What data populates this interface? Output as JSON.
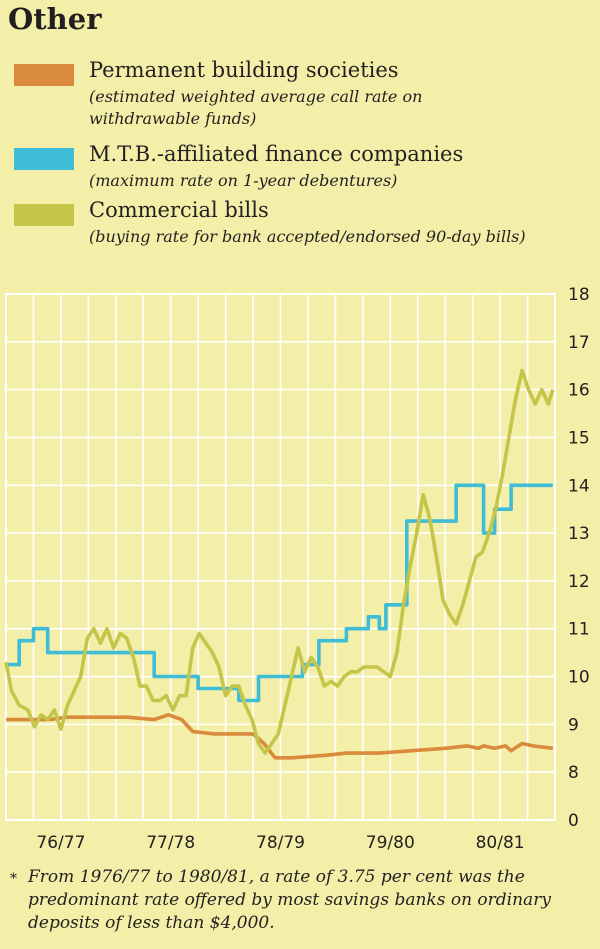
{
  "title": "Other",
  "legend": [
    {
      "name": "Permanent building societies",
      "note": "(estimated weighted average call rate on withdrawable funds)",
      "color": "#d98a3c"
    },
    {
      "name": "M.T.B.-affiliated finance companies",
      "note": "(maximum rate on 1-year debentures)",
      "color": "#3fbcd6"
    },
    {
      "name": "Commercial bills",
      "note": "(buying rate for bank accepted/endorsed 90-day bills)",
      "color": "#c5c54a"
    }
  ],
  "footnote": {
    "marker": "*",
    "text": "From 1976/77 to 1980/81, a rate of 3.75 per cent was the predominant rate offered by most savings banks on ordinary deposits of less than $4,000."
  },
  "chart_data": {
    "type": "line",
    "title": "Other",
    "xlabel": "",
    "ylabel": "",
    "x_range": [
      1976.5,
      1981.5
    ],
    "ylim": [
      0,
      18
    ],
    "y_axis_break": [
      0,
      8
    ],
    "y_ticks": [
      0,
      8,
      9,
      10,
      11,
      12,
      13,
      14,
      15,
      16,
      17,
      18
    ],
    "x_tick_labels": [
      {
        "label": "76/77",
        "x": 1977.0
      },
      {
        "label": "77/78",
        "x": 1978.0
      },
      {
        "label": "78/79",
        "x": 1979.0
      },
      {
        "label": "79/80",
        "x": 1980.0
      },
      {
        "label": "80/81",
        "x": 1981.0
      }
    ],
    "grid": true,
    "series": [
      {
        "name": "Permanent building societies",
        "color": "#d98a3c",
        "points": [
          [
            1976.5,
            9.1
          ],
          [
            1976.9,
            9.1
          ],
          [
            1977.05,
            9.15
          ],
          [
            1977.3,
            9.15
          ],
          [
            1977.6,
            9.15
          ],
          [
            1977.85,
            9.1
          ],
          [
            1977.98,
            9.2
          ],
          [
            1978.1,
            9.1
          ],
          [
            1978.2,
            8.85
          ],
          [
            1978.4,
            8.8
          ],
          [
            1978.6,
            8.8
          ],
          [
            1978.75,
            8.8
          ],
          [
            1978.85,
            8.6
          ],
          [
            1978.95,
            8.3
          ],
          [
            1979.1,
            8.3
          ],
          [
            1979.4,
            8.35
          ],
          [
            1979.6,
            8.4
          ],
          [
            1979.9,
            8.4
          ],
          [
            1980.2,
            8.45
          ],
          [
            1980.5,
            8.5
          ],
          [
            1980.7,
            8.55
          ],
          [
            1980.8,
            8.5
          ],
          [
            1980.85,
            8.55
          ],
          [
            1980.95,
            8.5
          ],
          [
            1981.05,
            8.55
          ],
          [
            1981.1,
            8.45
          ],
          [
            1981.2,
            8.6
          ],
          [
            1981.3,
            8.55
          ],
          [
            1981.48,
            8.5
          ]
        ]
      },
      {
        "name": "M.T.B.-affiliated finance companies",
        "color": "#3fbcd6",
        "step": true,
        "points": [
          [
            1976.5,
            10.25
          ],
          [
            1976.62,
            10.25
          ],
          [
            1976.62,
            10.75
          ],
          [
            1976.75,
            10.75
          ],
          [
            1976.75,
            11.0
          ],
          [
            1976.88,
            11.0
          ],
          [
            1976.88,
            10.5
          ],
          [
            1977.85,
            10.5
          ],
          [
            1977.85,
            10.0
          ],
          [
            1978.25,
            10.0
          ],
          [
            1978.25,
            9.75
          ],
          [
            1978.62,
            9.75
          ],
          [
            1978.62,
            9.5
          ],
          [
            1978.8,
            9.5
          ],
          [
            1978.8,
            10.0
          ],
          [
            1979.2,
            10.0
          ],
          [
            1979.2,
            10.25
          ],
          [
            1979.35,
            10.25
          ],
          [
            1979.35,
            10.75
          ],
          [
            1979.6,
            10.75
          ],
          [
            1979.6,
            11.0
          ],
          [
            1979.8,
            11.0
          ],
          [
            1979.8,
            11.25
          ],
          [
            1979.9,
            11.25
          ],
          [
            1979.9,
            11.0
          ],
          [
            1979.96,
            11.0
          ],
          [
            1979.96,
            11.5
          ],
          [
            1980.15,
            11.5
          ],
          [
            1980.15,
            13.25
          ],
          [
            1980.6,
            13.25
          ],
          [
            1980.6,
            14.0
          ],
          [
            1980.85,
            14.0
          ],
          [
            1980.85,
            13.0
          ],
          [
            1980.95,
            13.0
          ],
          [
            1980.95,
            13.5
          ],
          [
            1981.1,
            13.5
          ],
          [
            1981.1,
            14.0
          ],
          [
            1981.48,
            14.0
          ]
        ]
      },
      {
        "name": "Commercial bills",
        "color": "#c5c54a",
        "points": [
          [
            1976.5,
            10.3
          ],
          [
            1976.55,
            9.7
          ],
          [
            1976.62,
            9.4
          ],
          [
            1976.7,
            9.3
          ],
          [
            1976.76,
            8.95
          ],
          [
            1976.82,
            9.2
          ],
          [
            1976.88,
            9.1
          ],
          [
            1976.94,
            9.3
          ],
          [
            1977.0,
            8.9
          ],
          [
            1977.06,
            9.4
          ],
          [
            1977.12,
            9.7
          ],
          [
            1977.18,
            10.0
          ],
          [
            1977.24,
            10.8
          ],
          [
            1977.3,
            11.0
          ],
          [
            1977.36,
            10.7
          ],
          [
            1977.42,
            11.0
          ],
          [
            1977.48,
            10.6
          ],
          [
            1977.54,
            10.9
          ],
          [
            1977.6,
            10.8
          ],
          [
            1977.66,
            10.4
          ],
          [
            1977.72,
            9.8
          ],
          [
            1977.78,
            9.8
          ],
          [
            1977.84,
            9.5
          ],
          [
            1977.9,
            9.5
          ],
          [
            1977.96,
            9.6
          ],
          [
            1978.02,
            9.3
          ],
          [
            1978.08,
            9.6
          ],
          [
            1978.14,
            9.6
          ],
          [
            1978.2,
            10.6
          ],
          [
            1978.26,
            10.9
          ],
          [
            1978.32,
            10.7
          ],
          [
            1978.38,
            10.5
          ],
          [
            1978.44,
            10.2
          ],
          [
            1978.5,
            9.6
          ],
          [
            1978.56,
            9.8
          ],
          [
            1978.62,
            9.8
          ],
          [
            1978.68,
            9.4
          ],
          [
            1978.74,
            9.1
          ],
          [
            1978.8,
            8.6
          ],
          [
            1978.86,
            8.4
          ],
          [
            1978.92,
            8.6
          ],
          [
            1978.98,
            8.8
          ],
          [
            1979.04,
            9.4
          ],
          [
            1979.1,
            10.0
          ],
          [
            1979.16,
            10.6
          ],
          [
            1979.22,
            10.1
          ],
          [
            1979.28,
            10.4
          ],
          [
            1979.34,
            10.2
          ],
          [
            1979.4,
            9.8
          ],
          [
            1979.46,
            9.9
          ],
          [
            1979.52,
            9.8
          ],
          [
            1979.58,
            10.0
          ],
          [
            1979.64,
            10.1
          ],
          [
            1979.7,
            10.1
          ],
          [
            1979.76,
            10.2
          ],
          [
            1979.82,
            10.2
          ],
          [
            1979.88,
            10.2
          ],
          [
            1979.94,
            10.1
          ],
          [
            1980.0,
            10.0
          ],
          [
            1980.06,
            10.5
          ],
          [
            1980.12,
            11.5
          ],
          [
            1980.18,
            12.3
          ],
          [
            1980.24,
            13.0
          ],
          [
            1980.3,
            13.8
          ],
          [
            1980.36,
            13.3
          ],
          [
            1980.42,
            12.5
          ],
          [
            1980.48,
            11.6
          ],
          [
            1980.54,
            11.3
          ],
          [
            1980.6,
            11.1
          ],
          [
            1980.66,
            11.5
          ],
          [
            1980.72,
            12.0
          ],
          [
            1980.78,
            12.5
          ],
          [
            1980.84,
            12.6
          ],
          [
            1980.9,
            13.0
          ],
          [
            1980.96,
            13.5
          ],
          [
            1981.02,
            14.2
          ],
          [
            1981.08,
            15.0
          ],
          [
            1981.14,
            15.8
          ],
          [
            1981.2,
            16.4
          ],
          [
            1981.26,
            16.0
          ],
          [
            1981.32,
            15.7
          ],
          [
            1981.38,
            16.0
          ],
          [
            1981.44,
            15.7
          ],
          [
            1981.48,
            16.0
          ]
        ]
      }
    ]
  }
}
